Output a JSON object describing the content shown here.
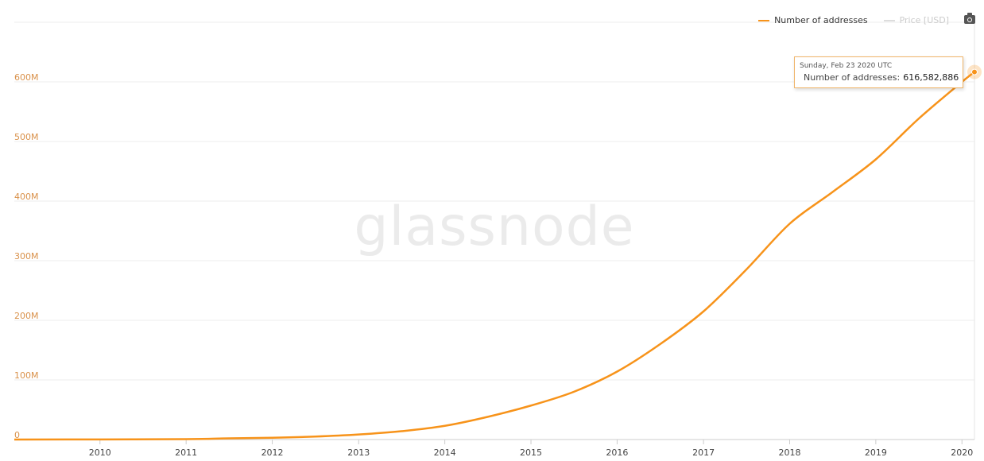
{
  "chart_data": {
    "type": "line",
    "title": "",
    "xlabel": "",
    "ylabel": "",
    "x_ticks": [
      "2010",
      "2011",
      "2012",
      "2013",
      "2014",
      "2015",
      "2016",
      "2017",
      "2018",
      "2019",
      "2020"
    ],
    "y_ticks": [
      "0",
      "100M",
      "200M",
      "300M",
      "400M",
      "500M",
      "600M"
    ],
    "y_tick_values": [
      0,
      100000000,
      200000000,
      300000000,
      400000000,
      500000000,
      600000000
    ],
    "xlim": [
      "2009-01-03",
      "2020-02-23"
    ],
    "ylim": [
      0,
      700000000
    ],
    "grid": true,
    "legend_position": "top-right",
    "series": [
      {
        "name": "Number of addresses",
        "color": "#f7931a",
        "x": [
          "2009-01-03",
          "2010-01-01",
          "2011-01-01",
          "2011-07-01",
          "2012-01-01",
          "2012-07-01",
          "2013-01-01",
          "2013-07-01",
          "2014-01-01",
          "2014-07-01",
          "2015-01-01",
          "2015-07-01",
          "2016-01-01",
          "2016-07-01",
          "2017-01-01",
          "2017-07-01",
          "2018-01-01",
          "2018-07-01",
          "2019-01-01",
          "2019-07-01",
          "2020-01-01",
          "2020-02-23"
        ],
        "values": [
          0,
          200000,
          700000,
          2000000,
          3000000,
          5000000,
          8500000,
          14000000,
          23000000,
          38000000,
          57000000,
          80000000,
          114000000,
          160000000,
          215000000,
          285000000,
          362000000,
          415000000,
          470000000,
          538000000,
          600000000,
          616582886
        ]
      },
      {
        "name": "Price [USD]",
        "color": "#cccccc",
        "hidden": true
      }
    ],
    "tooltip": {
      "date": "Sunday, Feb 23 2020 UTC",
      "label": "Number of addresses:",
      "value": "616,582,886"
    },
    "watermark": "glassnode"
  },
  "toolbar": {
    "camera_icon": "camera-icon"
  }
}
